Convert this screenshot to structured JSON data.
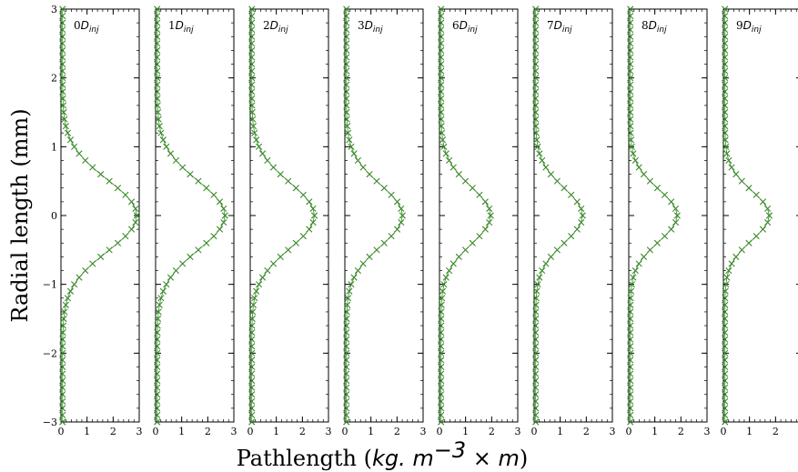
{
  "chart_data": {
    "type": "scatter",
    "xlabel": {
      "prefix": "Pathlength (",
      "math": "kg. m",
      "exp": "−3",
      "math2": " × m",
      "suffix": ")"
    },
    "ylabel": "Radial length (mm)",
    "xlim": [
      0,
      3
    ],
    "ylim": [
      -3,
      3
    ],
    "x_ticks": [
      "0",
      "1",
      "2",
      "3"
    ],
    "y_ticks": [
      "−3",
      "−2",
      "−1",
      "0",
      "1",
      "2",
      "3"
    ],
    "marker_color": "#3a8a2a",
    "panels": [
      {
        "label_num": "0",
        "label_math": "D",
        "label_sub": "inj",
        "peak": 2.85,
        "sigma": 0.52
      },
      {
        "label_num": "1",
        "label_math": "D",
        "label_sub": "inj",
        "peak": 2.6,
        "sigma": 0.5
      },
      {
        "label_num": "2",
        "label_math": "D",
        "label_sub": "inj",
        "peak": 2.4,
        "sigma": 0.48
      },
      {
        "label_num": "3",
        "label_math": "D",
        "label_sub": "inj",
        "peak": 2.15,
        "sigma": 0.45
      },
      {
        "label_num": "6",
        "label_math": "D",
        "label_sub": "inj",
        "peak": 1.9,
        "sigma": 0.42
      },
      {
        "label_num": "7",
        "label_math": "D",
        "label_sub": "inj",
        "peak": 1.8,
        "sigma": 0.4
      },
      {
        "label_num": "8",
        "label_math": "D",
        "label_sub": "inj",
        "peak": 1.8,
        "sigma": 0.38
      },
      {
        "label_num": "9",
        "label_math": "D",
        "label_sub": "inj",
        "peak": 1.7,
        "sigma": 0.36
      }
    ]
  }
}
